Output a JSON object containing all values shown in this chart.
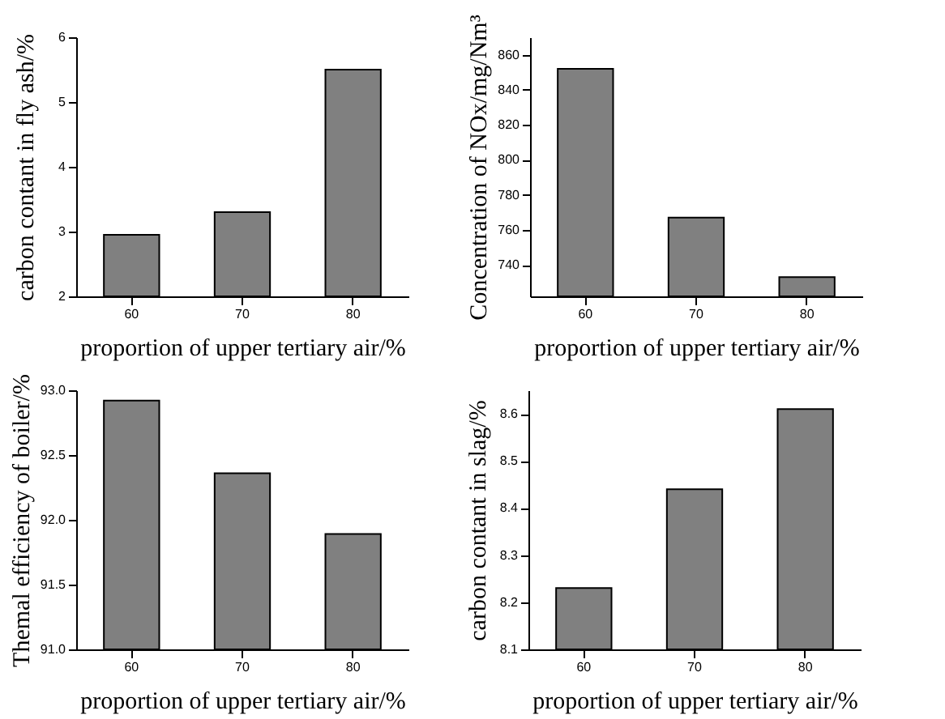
{
  "chart_data": [
    {
      "type": "bar",
      "categories": [
        "60",
        "70",
        "80"
      ],
      "values": [
        2.95,
        3.3,
        5.5
      ],
      "color": "#808080",
      "xlabel": "proportion of upper tertiary air/%",
      "ylabel": "carbon contant in fly ash/%",
      "ylim": [
        2,
        6
      ],
      "yticks": [
        2,
        3,
        4,
        5,
        6
      ],
      "grid": false
    },
    {
      "type": "bar",
      "categories": [
        "60",
        "70",
        "80"
      ],
      "values": [
        852,
        767,
        733
      ],
      "color": "#808080",
      "xlabel": "proportion of upper tertiary air/%",
      "ylabel": "Concentration of NOx/mg/Nm³",
      "ylim": [
        722,
        870
      ],
      "yticks": [
        740,
        760,
        780,
        800,
        820,
        840,
        860
      ],
      "grid": false
    },
    {
      "type": "bar",
      "categories": [
        "60",
        "70",
        "80"
      ],
      "values": [
        92.92,
        92.36,
        91.89
      ],
      "color": "#808080",
      "xlabel": "proportion of upper tertiary air/%",
      "ylabel": "Themal efficiency of boiler/%",
      "ylim": [
        91,
        93
      ],
      "yticks": [
        {
          "value": 91,
          "label": "91.0"
        },
        {
          "value": 91.5,
          "label": "91.5"
        },
        {
          "value": 92,
          "label": "92.0"
        },
        {
          "value": 92.5,
          "label": "92.5"
        },
        {
          "value": 93,
          "label": "93.0"
        }
      ],
      "grid": false
    },
    {
      "type": "bar",
      "categories": [
        "60",
        "70",
        "80"
      ],
      "values": [
        8.23,
        8.44,
        8.61
      ],
      "color": "#808080",
      "xlabel": "proportion of upper tertiary air/%",
      "ylabel": "carbon contant in slag/%",
      "ylim": [
        8.1,
        8.65
      ],
      "yticks": [
        8.1,
        8.2,
        8.3,
        8.4,
        8.5,
        8.6
      ],
      "grid": false
    }
  ]
}
